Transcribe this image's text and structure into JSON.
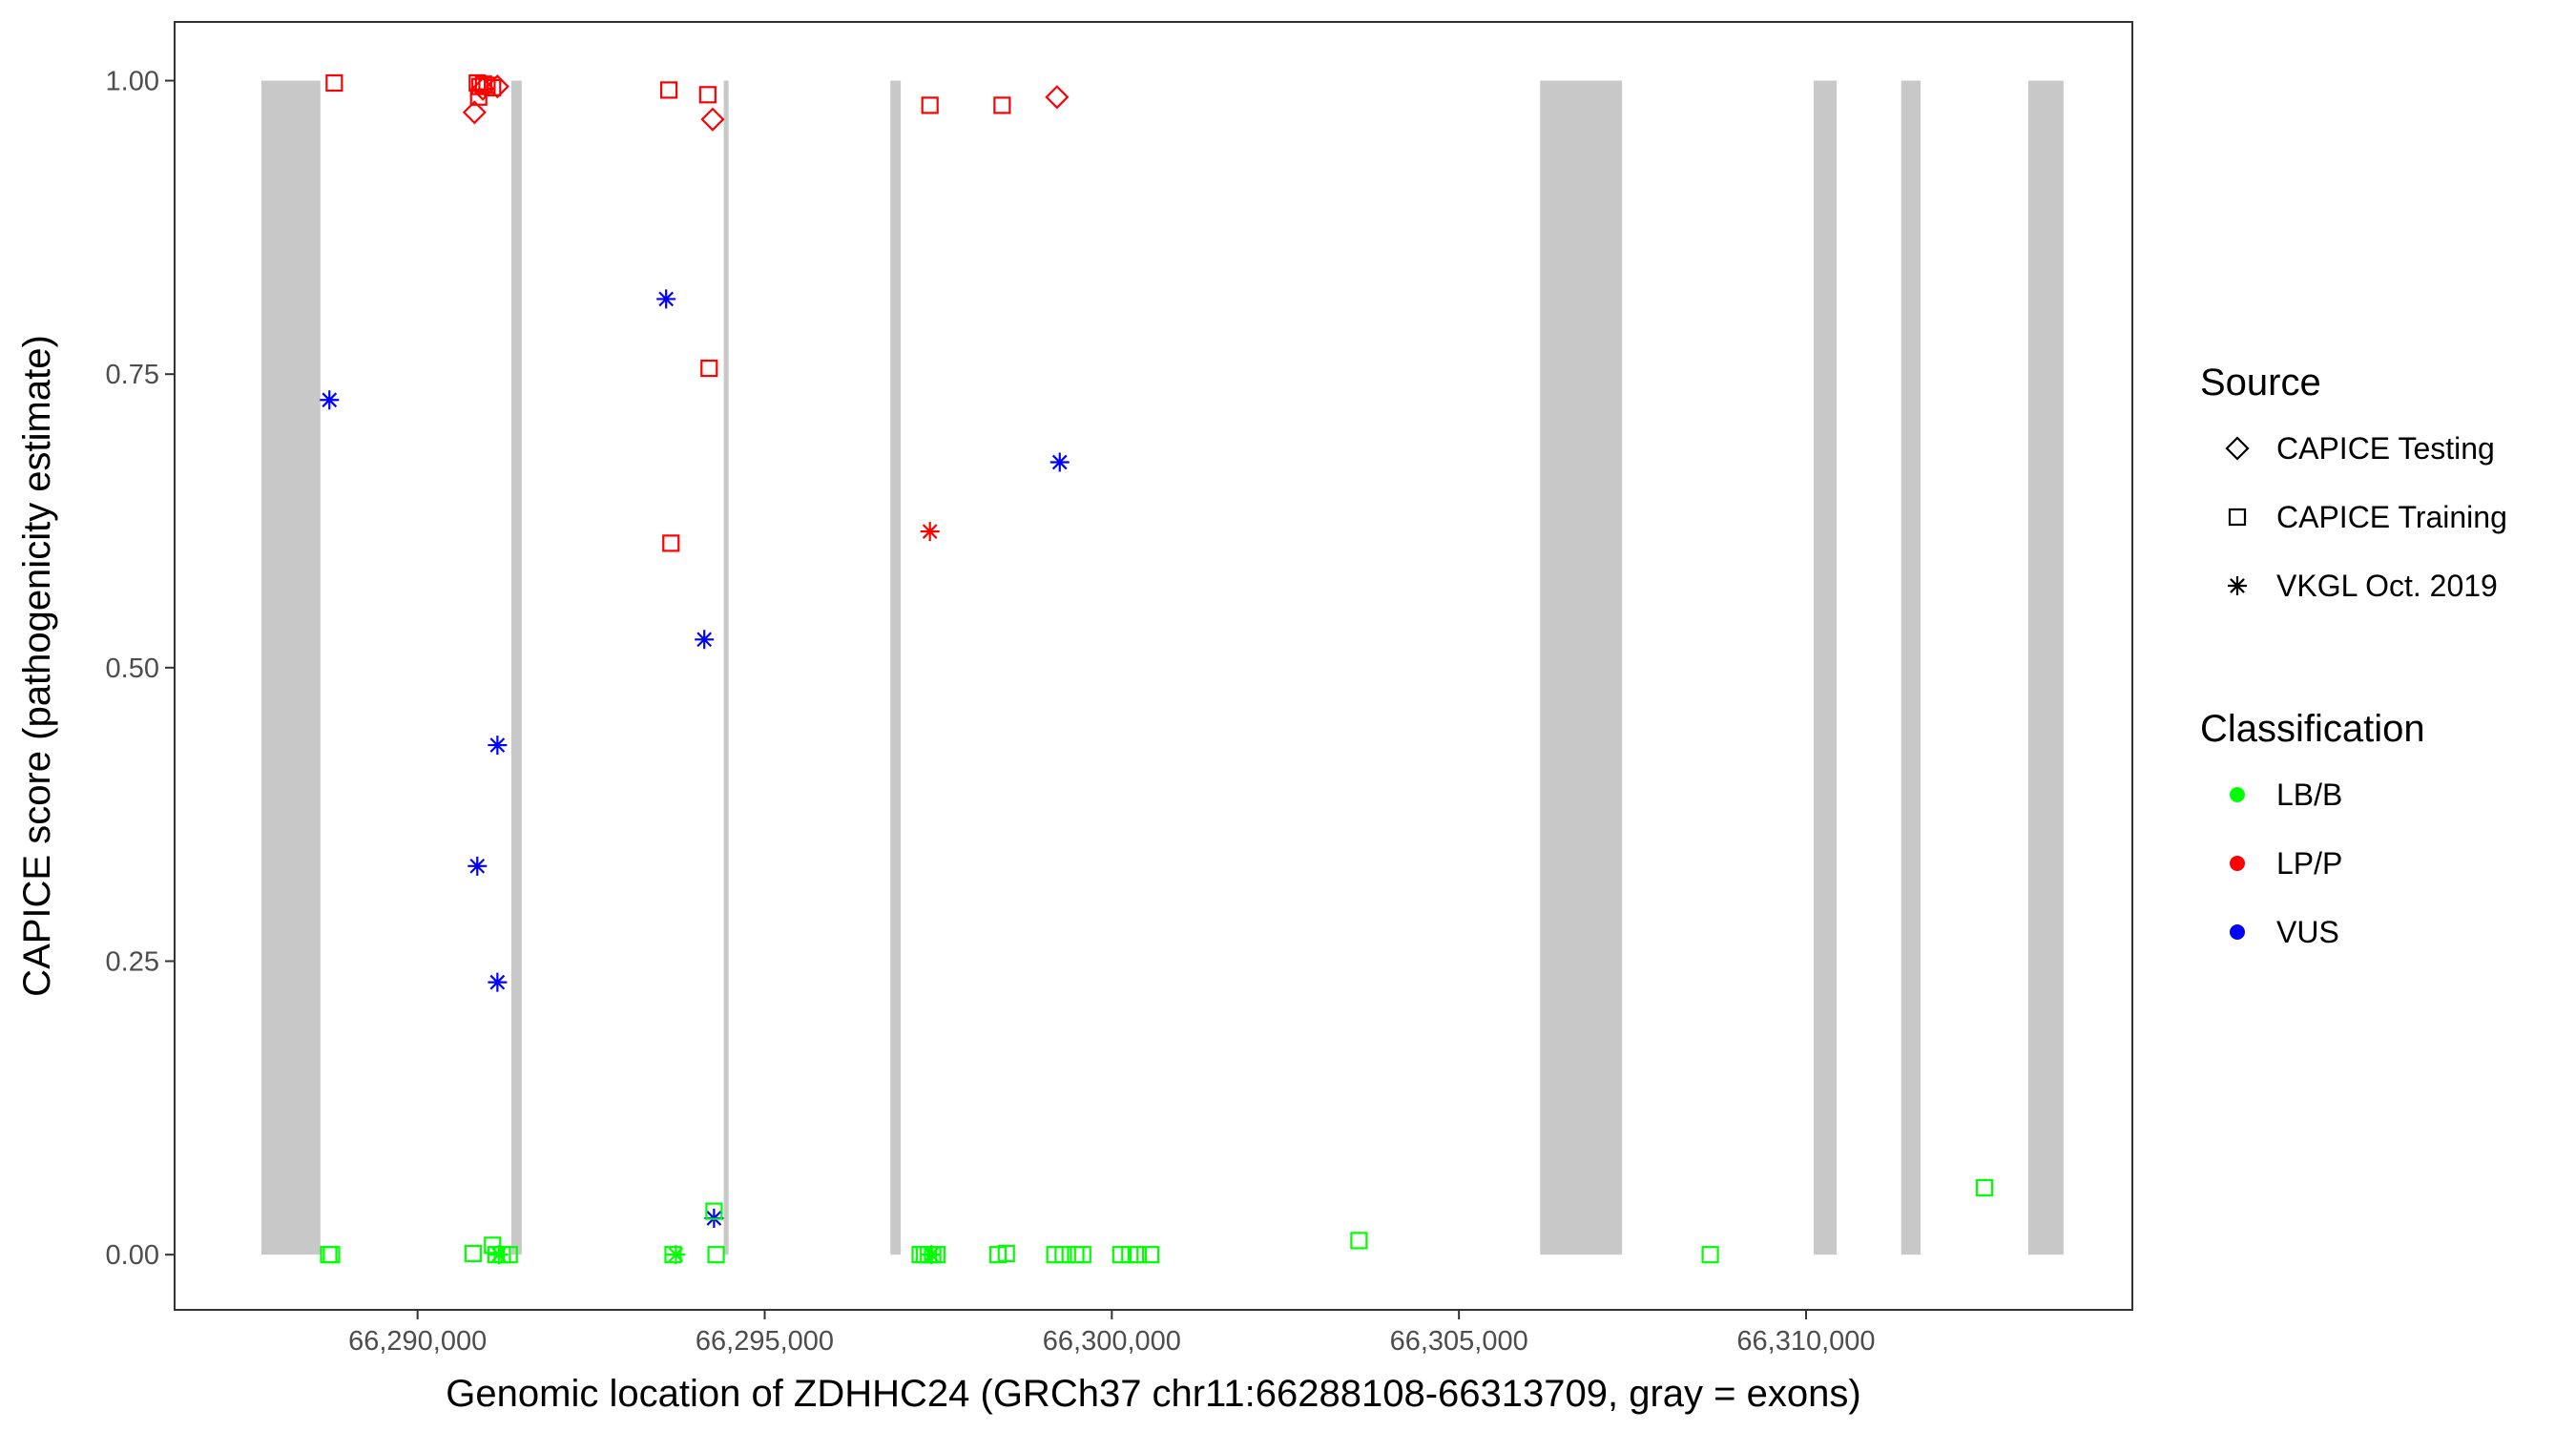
{
  "chart_data": {
    "type": "scatter",
    "title": "",
    "xlabel": "Genomic location of ZDHHC24 (GRCh37 chr11:66288108-66313709, gray = exons)",
    "ylabel": "CAPICE score (pathogenicity estimate)",
    "xlim": [
      66286500,
      66314700
    ],
    "ylim": [
      -0.047,
      1.05
    ],
    "x_ticks": [
      66290000,
      66295000,
      66300000,
      66305000,
      66310000
    ],
    "x_tick_labels": [
      "66,290,000",
      "66,295,000",
      "66,300,000",
      "66,305,000",
      "66,310,000"
    ],
    "y_ticks": [
      0,
      0.25,
      0.5,
      0.75,
      1
    ],
    "y_tick_labels": [
      "0.00",
      "0.25",
      "0.50",
      "0.75",
      "1.00"
    ],
    "grid": false,
    "exon_color": "#c8c8c8",
    "exons": [
      [
        66287750,
        66288600
      ],
      [
        66291350,
        66291500
      ],
      [
        66294410,
        66294480
      ],
      [
        66296810,
        66296960
      ],
      [
        66306170,
        66307350
      ],
      [
        66310110,
        66310440
      ],
      [
        66311370,
        66311650
      ],
      [
        66313200,
        66313709
      ]
    ],
    "legend_position": "right",
    "legend": {
      "source": {
        "title": "Source",
        "items": [
          {
            "shape": "diamond",
            "label": "CAPICE Testing"
          },
          {
            "shape": "square",
            "label": "CAPICE Training"
          },
          {
            "shape": "asterisk",
            "label": "VKGL Oct. 2019"
          }
        ]
      },
      "classification": {
        "title": "Classification",
        "items": [
          {
            "label": "LB/B",
            "color": "#00ff00"
          },
          {
            "label": "LP/P",
            "color": "#ff0000"
          },
          {
            "label": "VUS",
            "color": "#0000ff"
          }
        ]
      }
    },
    "points": [
      {
        "x": 66288800,
        "y": 0.998,
        "shape": "square",
        "class": "LP/P"
      },
      {
        "x": 66290860,
        "y": 0.998,
        "shape": "square",
        "class": "LP/P"
      },
      {
        "x": 66290900,
        "y": 0.995,
        "shape": "square",
        "class": "LP/P"
      },
      {
        "x": 66290950,
        "y": 0.997,
        "shape": "square",
        "class": "LP/P"
      },
      {
        "x": 66291000,
        "y": 0.996,
        "shape": "square",
        "class": "LP/P"
      },
      {
        "x": 66291080,
        "y": 0.994,
        "shape": "square",
        "class": "LP/P"
      },
      {
        "x": 66290880,
        "y": 0.986,
        "shape": "square",
        "class": "LP/P"
      },
      {
        "x": 66290820,
        "y": 0.973,
        "shape": "diamond",
        "class": "LP/P"
      },
      {
        "x": 66291150,
        "y": 0.995,
        "shape": "diamond",
        "class": "LP/P"
      },
      {
        "x": 66290940,
        "y": 0.993,
        "shape": "diamond",
        "class": "LP/P"
      },
      {
        "x": 66293620,
        "y": 0.992,
        "shape": "square",
        "class": "LP/P"
      },
      {
        "x": 66294180,
        "y": 0.988,
        "shape": "square",
        "class": "LP/P"
      },
      {
        "x": 66294250,
        "y": 0.967,
        "shape": "diamond",
        "class": "LP/P"
      },
      {
        "x": 66294200,
        "y": 0.755,
        "shape": "square",
        "class": "LP/P"
      },
      {
        "x": 66293650,
        "y": 0.606,
        "shape": "square",
        "class": "LP/P"
      },
      {
        "x": 66297380,
        "y": 0.979,
        "shape": "square",
        "class": "LP/P"
      },
      {
        "x": 66298420,
        "y": 0.979,
        "shape": "square",
        "class": "LP/P"
      },
      {
        "x": 66299210,
        "y": 0.986,
        "shape": "diamond",
        "class": "LP/P"
      },
      {
        "x": 66297380,
        "y": 0.616,
        "shape": "asterisk",
        "class": "LP/P"
      },
      {
        "x": 66288730,
        "y": 0.728,
        "shape": "asterisk",
        "class": "VUS"
      },
      {
        "x": 66291150,
        "y": 0.434,
        "shape": "asterisk",
        "class": "VUS"
      },
      {
        "x": 66290860,
        "y": 0.331,
        "shape": "asterisk",
        "class": "VUS"
      },
      {
        "x": 66291150,
        "y": 0.232,
        "shape": "asterisk",
        "class": "VUS"
      },
      {
        "x": 66293580,
        "y": 0.814,
        "shape": "asterisk",
        "class": "VUS"
      },
      {
        "x": 66294130,
        "y": 0.524,
        "shape": "asterisk",
        "class": "VUS"
      },
      {
        "x": 66294270,
        "y": 0.031,
        "shape": "asterisk",
        "class": "VUS"
      },
      {
        "x": 66299250,
        "y": 0.675,
        "shape": "asterisk",
        "class": "VUS"
      },
      {
        "x": 66288720,
        "y": 0.0,
        "shape": "square",
        "class": "LB/B"
      },
      {
        "x": 66288760,
        "y": 0.0,
        "shape": "square",
        "class": "LB/B"
      },
      {
        "x": 66290800,
        "y": 0.001,
        "shape": "square",
        "class": "LB/B"
      },
      {
        "x": 66291080,
        "y": 0.008,
        "shape": "square",
        "class": "LB/B"
      },
      {
        "x": 66291130,
        "y": 0.0,
        "shape": "square",
        "class": "LB/B"
      },
      {
        "x": 66291220,
        "y": 0.0,
        "shape": "square",
        "class": "LB/B"
      },
      {
        "x": 66291320,
        "y": 0.0,
        "shape": "square",
        "class": "LB/B"
      },
      {
        "x": 66291170,
        "y": 0.0,
        "shape": "asterisk",
        "class": "LB/B"
      },
      {
        "x": 66293680,
        "y": 0.0,
        "shape": "square",
        "class": "LB/B"
      },
      {
        "x": 66293720,
        "y": 0.0,
        "shape": "asterisk",
        "class": "LB/B"
      },
      {
        "x": 66294270,
        "y": 0.037,
        "shape": "square",
        "class": "LB/B"
      },
      {
        "x": 66294300,
        "y": 0.0,
        "shape": "square",
        "class": "LB/B"
      },
      {
        "x": 66297240,
        "y": 0.0,
        "shape": "square",
        "class": "LB/B"
      },
      {
        "x": 66297300,
        "y": 0.0,
        "shape": "square",
        "class": "LB/B"
      },
      {
        "x": 66297360,
        "y": 0.0,
        "shape": "square",
        "class": "LB/B"
      },
      {
        "x": 66297420,
        "y": 0.0,
        "shape": "square",
        "class": "LB/B"
      },
      {
        "x": 66297480,
        "y": 0.0,
        "shape": "square",
        "class": "LB/B"
      },
      {
        "x": 66297400,
        "y": 0.0,
        "shape": "asterisk",
        "class": "LB/B"
      },
      {
        "x": 66298360,
        "y": 0.0,
        "shape": "square",
        "class": "LB/B"
      },
      {
        "x": 66298480,
        "y": 0.001,
        "shape": "square",
        "class": "LB/B"
      },
      {
        "x": 66299180,
        "y": 0.0,
        "shape": "square",
        "class": "LB/B"
      },
      {
        "x": 66299300,
        "y": 0.0,
        "shape": "square",
        "class": "LB/B"
      },
      {
        "x": 66299480,
        "y": 0.0,
        "shape": "square",
        "class": "LB/B"
      },
      {
        "x": 66299580,
        "y": 0.0,
        "shape": "square",
        "class": "LB/B"
      },
      {
        "x": 66300130,
        "y": 0.0,
        "shape": "square",
        "class": "LB/B"
      },
      {
        "x": 66300260,
        "y": 0.0,
        "shape": "square",
        "class": "LB/B"
      },
      {
        "x": 66300380,
        "y": 0.0,
        "shape": "square",
        "class": "LB/B"
      },
      {
        "x": 66300560,
        "y": 0.0,
        "shape": "square",
        "class": "LB/B"
      },
      {
        "x": 66303560,
        "y": 0.012,
        "shape": "square",
        "class": "LB/B"
      },
      {
        "x": 66308620,
        "y": 0.0,
        "shape": "square",
        "class": "LB/B"
      },
      {
        "x": 66312570,
        "y": 0.057,
        "shape": "square",
        "class": "LB/B"
      }
    ]
  }
}
